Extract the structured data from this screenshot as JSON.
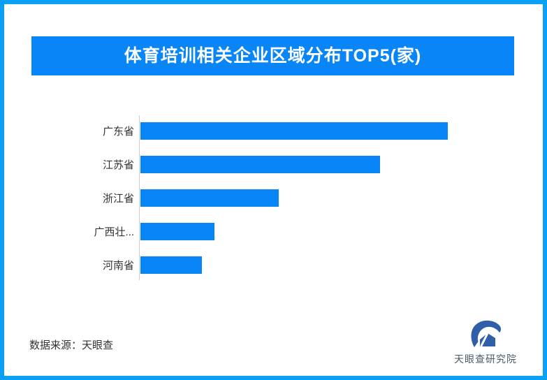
{
  "page": {
    "border_color": "#0aa0f5",
    "background": "#ffffff"
  },
  "header": {
    "title": "体育培训相关企业区域分布TOP5(家)",
    "background": "#0886f8",
    "text_color": "#ffffff"
  },
  "chart_data": {
    "type": "bar",
    "orientation": "horizontal",
    "title": "体育培训相关企业区域分布TOP5(家)",
    "categories": [
      "广东省",
      "江苏省",
      "浙江省",
      "广西壮...",
      "河南省"
    ],
    "values": [
      100,
      78,
      45,
      24,
      20
    ],
    "values_are_relative": true,
    "value_labels_shown": false,
    "xlabel": "",
    "ylabel": "",
    "grid": false,
    "legend": false,
    "bar_color": "#0886f8",
    "axis_line_color": "#cccccc",
    "label_color": "#333333"
  },
  "footer": {
    "source_text": "数据来源：天眼查",
    "logo_text": "天眼查研究院",
    "logo_color": "#2e5fa8",
    "logo_text_color": "#4d5a6b"
  }
}
